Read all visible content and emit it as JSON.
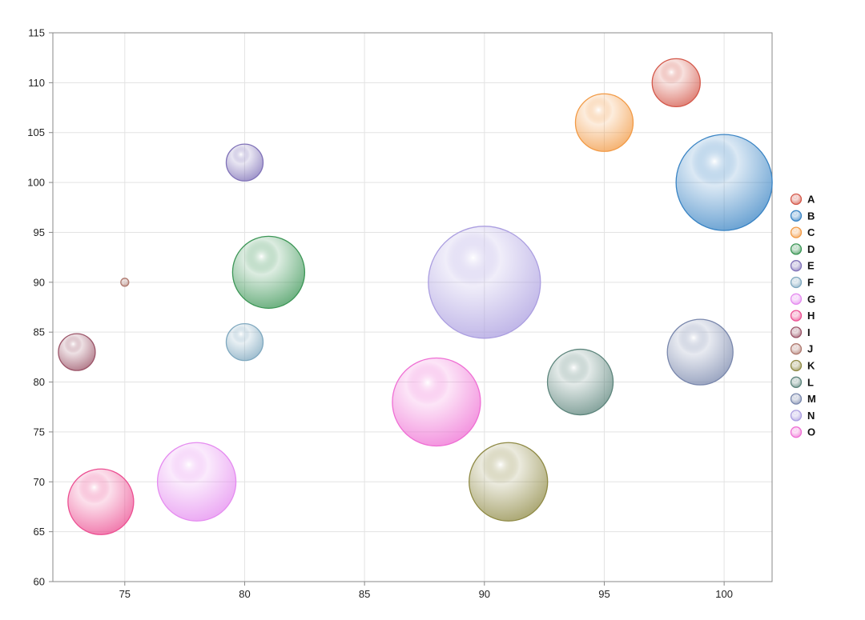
{
  "chart_data": {
    "type": "scatter",
    "variant": "bubble",
    "title": "",
    "xlabel": "",
    "ylabel": "",
    "xlim": [
      72,
      102
    ],
    "ylim": [
      60,
      115
    ],
    "xticks": [
      75,
      80,
      85,
      90,
      95,
      100
    ],
    "yticks": [
      60,
      65,
      70,
      75,
      80,
      85,
      90,
      95,
      100,
      105,
      110,
      115
    ],
    "grid": true,
    "legend_position": "right",
    "series": [
      {
        "name": "A",
        "x": 98,
        "y": 110,
        "size": 30,
        "color": "#d4584a"
      },
      {
        "name": "B",
        "x": 100,
        "y": 100,
        "size": 60,
        "color": "#3a84c4"
      },
      {
        "name": "C",
        "x": 95,
        "y": 106,
        "size": 36,
        "color": "#f29a45"
      },
      {
        "name": "D",
        "x": 81,
        "y": 91,
        "size": 45,
        "color": "#3c9656"
      },
      {
        "name": "E",
        "x": 80,
        "y": 102,
        "size": 23,
        "color": "#8072b8"
      },
      {
        "name": "F",
        "x": 80,
        "y": 84,
        "size": 23,
        "color": "#7fa8bf"
      },
      {
        "name": "G",
        "x": 78,
        "y": 70,
        "size": 49,
        "color": "#e58cf0"
      },
      {
        "name": "H",
        "x": 74,
        "y": 68,
        "size": 41,
        "color": "#ec4f92"
      },
      {
        "name": "I",
        "x": 73,
        "y": 83,
        "size": 23,
        "color": "#9b5468"
      },
      {
        "name": "J",
        "x": 75,
        "y": 90,
        "size": 5,
        "color": "#b07a70"
      },
      {
        "name": "K",
        "x": 91,
        "y": 70,
        "size": 49,
        "color": "#8f8a45"
      },
      {
        "name": "L",
        "x": 94,
        "y": 80,
        "size": 41,
        "color": "#5d857c"
      },
      {
        "name": "M",
        "x": 99,
        "y": 83,
        "size": 41,
        "color": "#7a88ad"
      },
      {
        "name": "N",
        "x": 90,
        "y": 90,
        "size": 70,
        "color": "#ab9ee0"
      },
      {
        "name": "O",
        "x": 88,
        "y": 78,
        "size": 55,
        "color": "#ef6fd4"
      }
    ]
  }
}
